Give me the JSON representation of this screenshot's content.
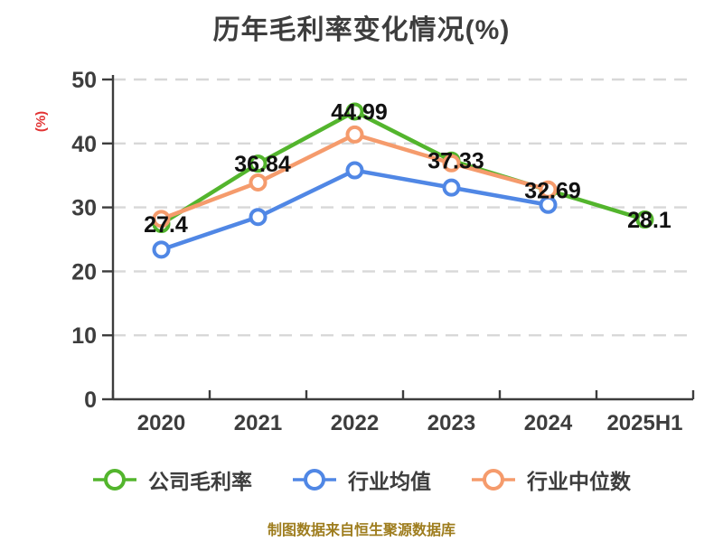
{
  "title": "历年毛利率变化情况(%)",
  "footer": "制图数据来自恒生聚源数据库",
  "colors": {
    "series_company": "#53b52d",
    "series_industry_mean": "#5087e5",
    "series_industry_median": "#f59b6c",
    "axis": "#3d3d3d",
    "grid": "#d8d8d8",
    "tick_text": "#3d3d3d",
    "data_label_text": "#111111",
    "y_axis_label_text": "#e23333",
    "footer_text": "#9e7d1e",
    "marker_fill": "#ffffff",
    "background": "#ffffff"
  },
  "chart_data": {
    "type": "line",
    "title": "历年毛利率变化情况(%)",
    "xlabel": "",
    "ylabel": "(%)",
    "ylim": [
      0,
      50
    ],
    "y_ticks": [
      0,
      10,
      20,
      30,
      40,
      50
    ],
    "grid": "horizontal-dashed",
    "legend_position": "bottom",
    "categories": [
      "2020",
      "2021",
      "2022",
      "2023",
      "2024",
      "2025H1"
    ],
    "series": [
      {
        "name": "公司毛利率",
        "color": "#53b52d",
        "values": [
          27.4,
          36.84,
          44.99,
          37.33,
          32.69,
          28.1
        ],
        "data_labels": [
          "27.4",
          "36.84",
          "44.99",
          "37.33",
          "32.69",
          "28.1"
        ],
        "labeled": true
      },
      {
        "name": "行业均值",
        "color": "#5087e5",
        "values": [
          23.4,
          28.5,
          35.8,
          33.1,
          30.4,
          null
        ],
        "labeled": false
      },
      {
        "name": "行业中位数",
        "color": "#f59b6c",
        "values": [
          28.2,
          33.9,
          41.4,
          36.9,
          32.8,
          null
        ],
        "labeled": false
      }
    ]
  }
}
